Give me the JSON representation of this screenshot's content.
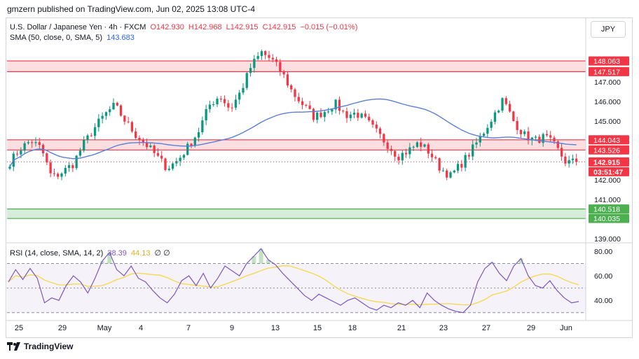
{
  "header": {
    "publisher_line": "gmzern published on TradingView.com, Jun 02, 2025 13:08 UTC-4"
  },
  "legend": {
    "symbol": "U.S. Dollar / Japanese Yen · 4h · FXCM",
    "open": "O142.930",
    "high": "H142.968",
    "low": "L142.915",
    "close": "C142.915",
    "change": "−0.015 (−0.01%)",
    "sma_label": "SMA (50, close, 0, SMA, 5)",
    "sma_value": "143.683",
    "rsi_label": "RSI (14, close, SMA, 14, 2)",
    "rsi_value": "38.39",
    "rsi_ma_value": "44.13",
    "rsi_extra": "∅ ∅"
  },
  "currency_button": "JPY",
  "footer_brand": "TradingView",
  "colors": {
    "up": "#089981",
    "down": "#f23645",
    "sma": "#5b7fd6",
    "rsi": "#7e57c2",
    "rsi_ma": "#f5d84a",
    "resistance": "#f23645",
    "support": "#4caf50"
  },
  "chart_data": [
    {
      "type": "candlestick",
      "title": "U.S. Dollar / Japanese Yen · 4h · FXCM",
      "x_tick_labels": [
        "25",
        "29",
        "May",
        "4",
        "7",
        "9",
        "13",
        "15",
        "18",
        "21",
        "23",
        "27",
        "29",
        "Jun"
      ],
      "y_tick_labels": [
        "139.000",
        "140.000",
        "141.000",
        "142.000",
        "143.000",
        "144.000",
        "145.000",
        "146.000",
        "147.000"
      ],
      "ylim": [
        138.9,
        149.1
      ],
      "close_path": [
        142.9,
        143.6,
        144.0,
        143.6,
        142.1,
        142.4,
        142.8,
        143.8,
        144.6,
        145.3,
        145.8,
        145.0,
        144.3,
        143.8,
        143.2,
        142.6,
        143.0,
        143.7,
        144.5,
        145.8,
        146.3,
        145.6,
        146.5,
        147.8,
        148.5,
        148.1,
        147.4,
        146.4,
        145.8,
        145.2,
        145.5,
        145.9,
        145.3,
        145.4,
        145.0,
        144.4,
        143.8,
        143.2,
        143.5,
        143.9,
        143.4,
        142.6,
        142.2,
        142.8,
        143.5,
        144.3,
        145.2,
        146.1,
        145.0,
        144.3,
        144.0,
        144.2,
        143.7,
        142.9,
        142.92
      ],
      "price_labels": [
        {
          "text": "148.063",
          "value": 148.063,
          "color": "#f23645"
        },
        {
          "text": "147.517",
          "value": 147.517,
          "color": "#f23645"
        },
        {
          "text": "144.043",
          "value": 144.043,
          "color": "#f23645"
        },
        {
          "text": "143.526",
          "value": 143.526,
          "color": "#f23645"
        },
        {
          "text": "142.915",
          "value": 142.915,
          "color": "#f23645"
        },
        {
          "text": "03:51:47",
          "value": null,
          "color": "#f23645"
        },
        {
          "text": "140.518",
          "value": 140.518,
          "color": "#4caf50"
        },
        {
          "text": "140.035",
          "value": 140.035,
          "color": "#4caf50"
        }
      ],
      "zones": [
        {
          "name": "resistance",
          "from": 147.517,
          "to": 148.063
        },
        {
          "name": "resistance",
          "from": 143.526,
          "to": 144.043
        },
        {
          "name": "support",
          "from": 140.035,
          "to": 140.518
        }
      ],
      "series": [
        {
          "name": "SMA (50, close, 0, SMA, 5)",
          "last": 143.683
        }
      ],
      "last_price": 142.915
    },
    {
      "type": "line",
      "title": "RSI (14, close, SMA, 14, 2)",
      "y_tick_labels": [
        "40.00",
        "60.00",
        "80.00"
      ],
      "ylim": [
        27,
        84
      ],
      "levels": [
        70,
        50,
        30
      ],
      "rsi_values": [
        55,
        65,
        57,
        66,
        58,
        38,
        42,
        40,
        52,
        60,
        55,
        46,
        58,
        72,
        79,
        65,
        60,
        68,
        58,
        55,
        48,
        42,
        38,
        45,
        56,
        60,
        52,
        62,
        50,
        58,
        68,
        64,
        60,
        70,
        76,
        82,
        73,
        69,
        62,
        56,
        50,
        44,
        40,
        45,
        42,
        39,
        36,
        40,
        42,
        38,
        34,
        32,
        36,
        34,
        38,
        36,
        40,
        34,
        46,
        40,
        36,
        33,
        31,
        30,
        36,
        55,
        66,
        71,
        62,
        56,
        68,
        74,
        60,
        52,
        50,
        56,
        48,
        42,
        38,
        39
      ],
      "series": [
        {
          "name": "RSI",
          "last": 38.39
        },
        {
          "name": "SMA",
          "last": 44.13
        }
      ]
    }
  ]
}
